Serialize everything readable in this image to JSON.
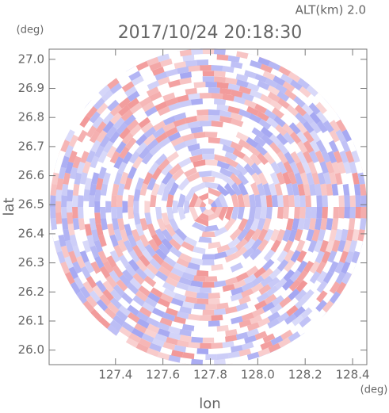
{
  "chart_data": {
    "type": "radar-ppi",
    "title": "2017/10/24 20:18:30",
    "subtitle": "ALT(km) 2.0",
    "x_label": "lon",
    "y_label": "lat",
    "x_unit": "(deg)",
    "y_unit": "(deg)",
    "xlim": [
      127.12,
      128.46
    ],
    "ylim": [
      25.95,
      27.035
    ],
    "xticks": [
      127.4,
      127.6,
      127.8,
      {
        "value": 128.0,
        "label": "128.0"
      },
      128.2,
      128.4
    ],
    "yticks": [
      {
        "value": 26.0,
        "label": "26.0"
      },
      26.1,
      26.2,
      26.3,
      26.4,
      26.5,
      26.6,
      26.7,
      26.8,
      26.9,
      {
        "value": 27.0,
        "label": "27.0"
      }
    ],
    "colors": [
      "#f08c8c",
      "#9a9cf0"
    ]
  }
}
